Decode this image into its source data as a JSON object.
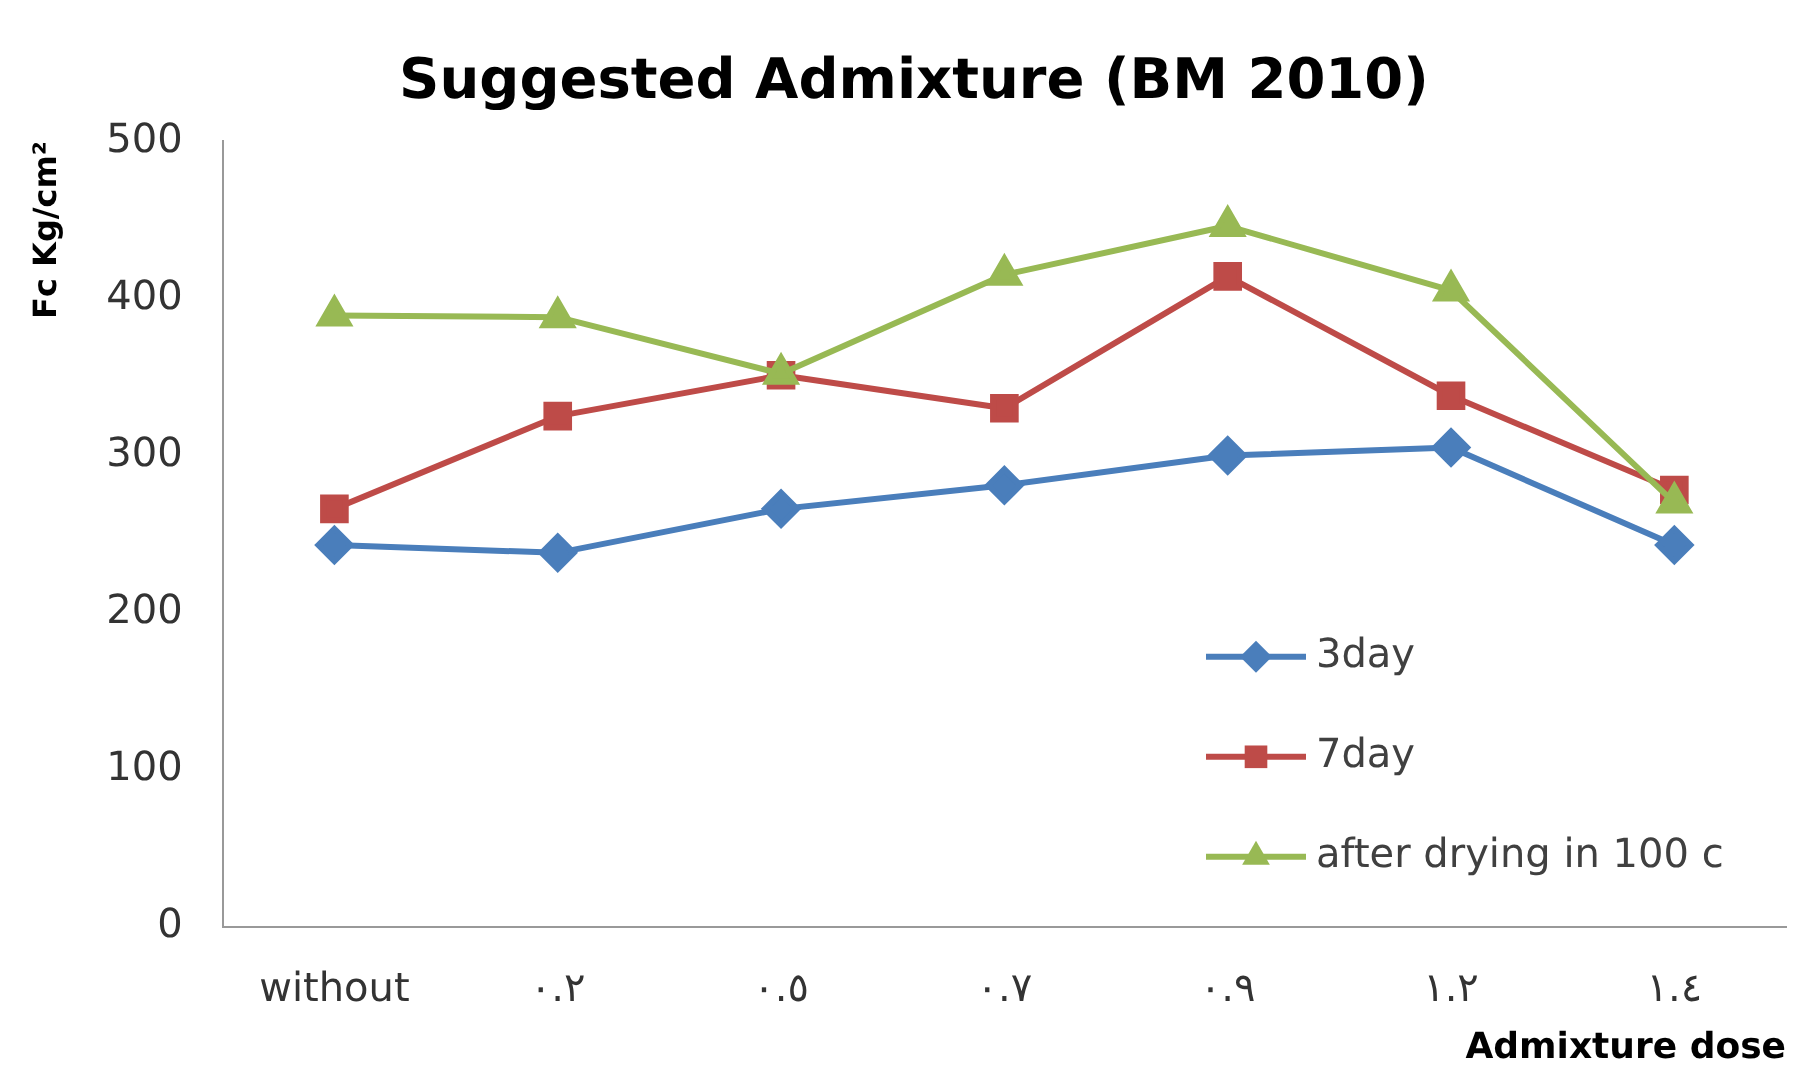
{
  "chart_data": {
    "type": "line",
    "title": "Suggested Admixture (BM 2010)",
    "xlabel": "Admixture dose",
    "ylabel": "Fc Kg/cm²",
    "categories": [
      "without",
      "٠.٢",
      "٠.٥",
      "٠.٧",
      "٠.٩",
      "١.٢",
      "١.٤"
    ],
    "series": [
      {
        "name": "3day",
        "color": "#4a7ebb",
        "marker": "diamond",
        "values": [
          243,
          238,
          266,
          281,
          300,
          305,
          243
        ]
      },
      {
        "name": "7day",
        "color": "#be4b48",
        "marker": "square",
        "values": [
          266,
          325,
          351,
          330,
          414,
          338,
          278
        ]
      },
      {
        "name": "after drying in 100 c",
        "color": "#98b954",
        "marker": "triangle",
        "values": [
          389,
          388,
          352,
          415,
          446,
          405,
          270
        ]
      }
    ],
    "ylim": [
      0,
      500
    ],
    "yticks": [
      0,
      100,
      200,
      300,
      400,
      500
    ],
    "grid": false,
    "legend": "bottom right"
  }
}
